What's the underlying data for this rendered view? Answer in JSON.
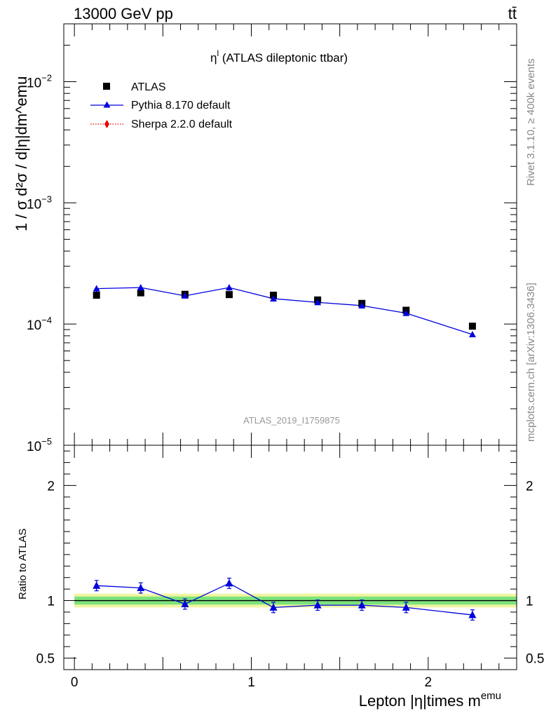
{
  "header": {
    "energy_label": "13000 GeV pp",
    "process_label": "tt̄"
  },
  "side_labels": {
    "rivet": "Rivet 3.1.10, ≥ 400k events",
    "mcplots": "mcplots.cern.ch [arXiv:1306.3436]"
  },
  "chart_data": [
    {
      "type": "scatter",
      "panel": "main",
      "title_main": "η",
      "title_sup": "l",
      "title_rest": " (ATLAS dileptonic ttbar)",
      "watermark": "ATLAS_2019_I1759875",
      "ylabel": "1 / σ  d²σ / d|η|dm^emu",
      "yscale": "log",
      "ylim": [
        1e-05,
        0.03
      ],
      "xlim": [
        -0.06,
        2.5
      ],
      "y_ticks": [
        {
          "value": 1e-05,
          "base": "10",
          "exp": "−5"
        },
        {
          "value": 0.0001,
          "base": "10",
          "exp": "−4"
        },
        {
          "value": 0.001,
          "base": "10",
          "exp": "−3"
        },
        {
          "value": 0.01,
          "base": "10",
          "exp": "−2"
        }
      ],
      "legend_position": "top-left",
      "x": [
        0.125,
        0.375,
        0.625,
        0.875,
        1.125,
        1.375,
        1.625,
        1.875,
        2.25
      ],
      "series": [
        {
          "name": "ATLAS",
          "marker": "square",
          "color": "#000000",
          "values": [
            0.000173,
            0.000181,
            0.000176,
            0.000175,
            0.000173,
            0.000158,
            0.000148,
            0.00013,
            9.6e-05
          ]
        },
        {
          "name": "Pythia 8.170 default",
          "marker": "triangle",
          "color": "#0000dd",
          "values": [
            0.000196,
            0.0002,
            0.000171,
            0.0002,
            0.000162,
            0.000151,
            0.000142,
            0.000123,
            8.2e-05
          ],
          "errors": [
            1.2e-05,
            1.2e-05,
            8e-06,
            1.2e-05,
            8e-06,
            8e-06,
            8e-06,
            7e-06,
            4e-06
          ]
        },
        {
          "name": "Sherpa 2.2.0 default",
          "marker": "diamond",
          "color": "#ee0000",
          "line": "dotted",
          "values": []
        }
      ]
    },
    {
      "type": "line",
      "panel": "ratio",
      "ylabel": "Ratio to ATLAS",
      "xlabel_main": "Lepton |η|times m",
      "xlabel_sup": "emu",
      "ylim": [
        0.4,
        2.35
      ],
      "xlim": [
        -0.06,
        2.5
      ],
      "y_ticks": [
        {
          "value": 0.5,
          "label": "0.5"
        },
        {
          "value": 1,
          "label": "1"
        },
        {
          "value": 2,
          "label": "2"
        }
      ],
      "x_ticks": [
        {
          "value": 0,
          "label": "0"
        },
        {
          "value": 1,
          "label": "1"
        },
        {
          "value": 2,
          "label": "2"
        }
      ],
      "band_outer": 0.06,
      "band_inner": 0.035,
      "x": [
        0.125,
        0.375,
        0.625,
        0.875,
        1.125,
        1.375,
        1.625,
        1.875,
        2.25
      ],
      "series": [
        {
          "name": "Pythia 8.170 default",
          "color": "#0000dd",
          "values": [
            1.13,
            1.11,
            0.97,
            1.15,
            0.94,
            0.96,
            0.96,
            0.94,
            0.875
          ],
          "errors": [
            0.045,
            0.045,
            0.045,
            0.045,
            0.045,
            0.045,
            0.045,
            0.045,
            0.045
          ]
        }
      ]
    }
  ],
  "colors": {
    "frame": "#000000",
    "band_outer": "#f0f5a0",
    "band_inner": "#7ce37c",
    "side_text": "#888888",
    "watermark": "#999999"
  }
}
